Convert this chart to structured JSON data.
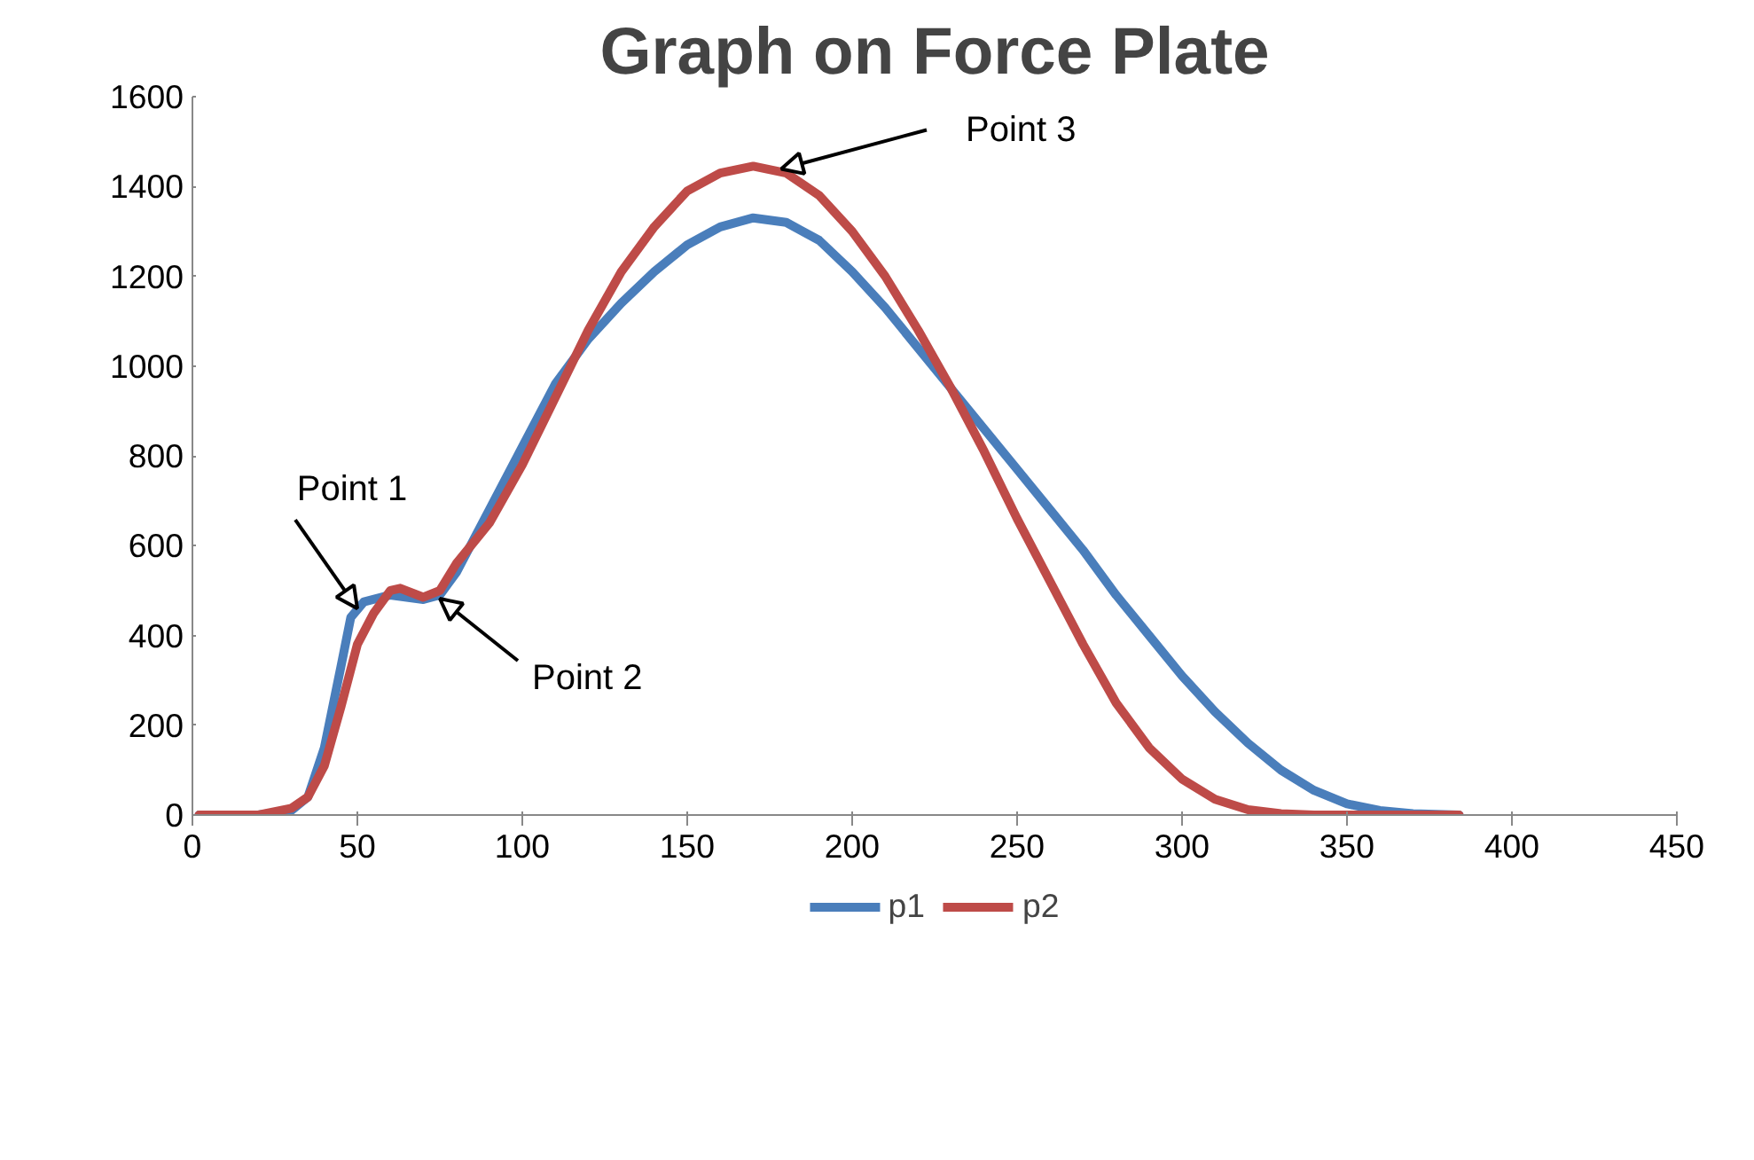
{
  "chart_data": {
    "type": "line",
    "title": "Graph on Force Plate",
    "xlim": [
      0,
      450
    ],
    "xticks": [
      0,
      50,
      100,
      150,
      200,
      250,
      300,
      350,
      400,
      450
    ],
    "ylim": [
      0,
      1600
    ],
    "yticks": [
      0,
      200,
      400,
      600,
      800,
      1000,
      1200,
      1400,
      1600
    ],
    "grid": false,
    "legend": "bottom",
    "marker": "none",
    "line_style": "solid",
    "annotations": [
      {
        "text": "Point 1",
        "x": 50,
        "y": 460
      },
      {
        "text": "Point 2",
        "x": 75,
        "y": 482
      },
      {
        "text": "Point 3",
        "x": 178.5,
        "y": 1439
      }
    ],
    "series": [
      {
        "name": "p1",
        "color": "#4a7ebb",
        "x": [
          2,
          20,
          30,
          35,
          40,
          45,
          48,
          52,
          60,
          70,
          75,
          80,
          90,
          100,
          110,
          120,
          130,
          140,
          150,
          160,
          170,
          180,
          190,
          200,
          210,
          220,
          230,
          240,
          250,
          260,
          270,
          280,
          290,
          300,
          310,
          320,
          330,
          340,
          350,
          360,
          370,
          384
        ],
        "values": [
          0,
          0,
          10,
          40,
          150,
          330,
          440,
          475,
          490,
          480,
          490,
          540,
          680,
          820,
          960,
          1060,
          1140,
          1210,
          1270,
          1310,
          1330,
          1320,
          1280,
          1210,
          1130,
          1040,
          950,
          860,
          770,
          680,
          590,
          490,
          400,
          310,
          230,
          160,
          100,
          55,
          25,
          10,
          3,
          0
        ]
      },
      {
        "name": "p2",
        "color": "#be4b48",
        "x": [
          2,
          20,
          30,
          35,
          40,
          45,
          50,
          55,
          60,
          63,
          70,
          75,
          80,
          90,
          100,
          110,
          120,
          130,
          140,
          150,
          160,
          170,
          180,
          190,
          200,
          210,
          220,
          230,
          240,
          250,
          260,
          270,
          280,
          290,
          300,
          310,
          320,
          330,
          340,
          384
        ],
        "values": [
          0,
          0,
          15,
          40,
          110,
          240,
          380,
          450,
          500,
          505,
          485,
          500,
          560,
          650,
          780,
          930,
          1080,
          1210,
          1310,
          1390,
          1430,
          1445,
          1430,
          1380,
          1300,
          1200,
          1080,
          950,
          810,
          660,
          520,
          380,
          250,
          150,
          80,
          35,
          12,
          3,
          0,
          0
        ]
      }
    ]
  }
}
